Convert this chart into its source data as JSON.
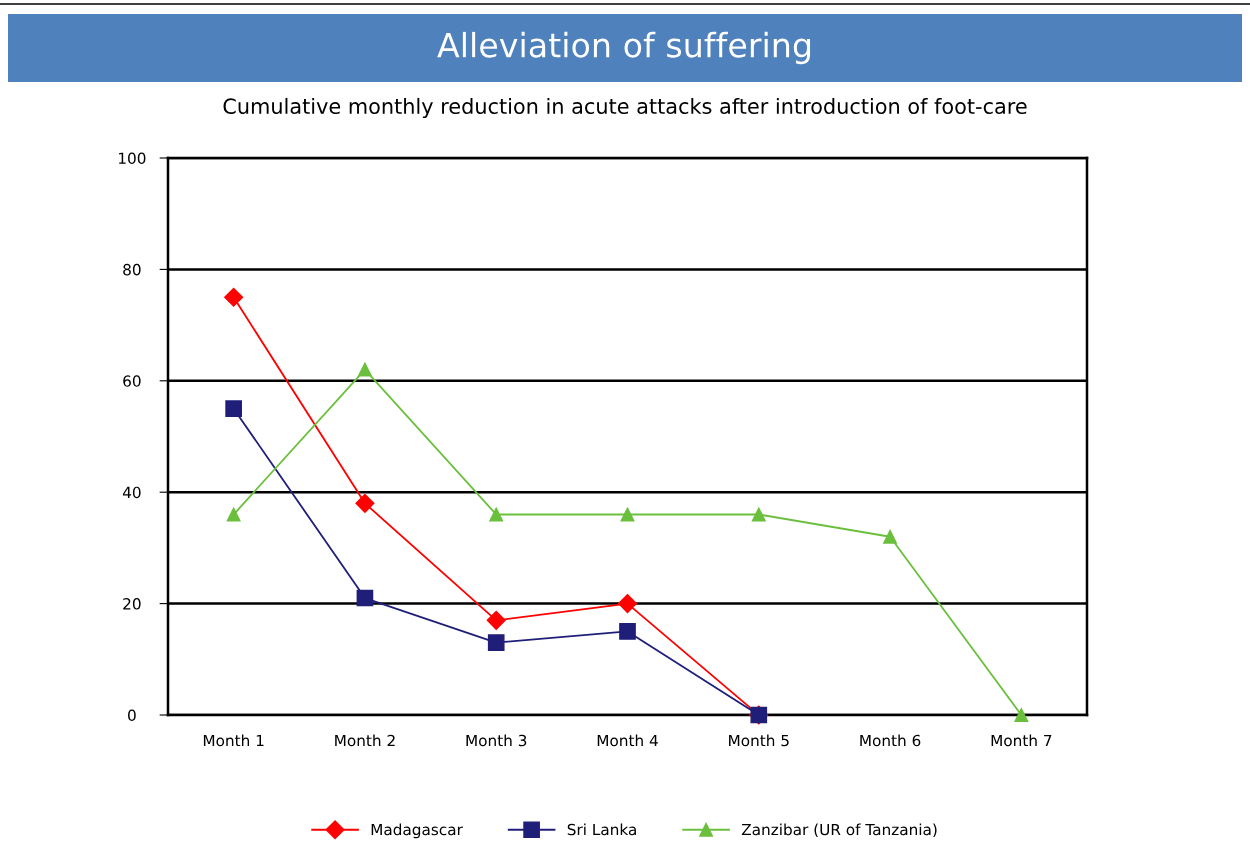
{
  "chart_data": {
    "type": "line",
    "title": "Alleviation of suffering",
    "subtitle": "Cumulative monthly reduction in acute attacks after introduction of foot-care",
    "categories": [
      "Month 1",
      "Month 2",
      "Month 3",
      "Month 4",
      "Month 5",
      "Month 6",
      "Month 7"
    ],
    "series": [
      {
        "name": "Madagascar",
        "color": "#ff0000",
        "marker": "diamond",
        "values": [
          75,
          38,
          17,
          20,
          0,
          null,
          null
        ]
      },
      {
        "name": "Sri Lanka",
        "color": "#1f1f7a",
        "marker": "square",
        "values": [
          55,
          21,
          13,
          15,
          0,
          null,
          null
        ]
      },
      {
        "name": "Zanzibar (UR of Tanzania)",
        "color": "#6abf3c",
        "marker": "triangle",
        "values": [
          36,
          62,
          36,
          36,
          36,
          32,
          0
        ]
      }
    ],
    "ylim": [
      0,
      100
    ],
    "yticks": [
      0,
      20,
      40,
      60,
      80,
      100
    ],
    "grid": "y",
    "legend": "bottom"
  }
}
